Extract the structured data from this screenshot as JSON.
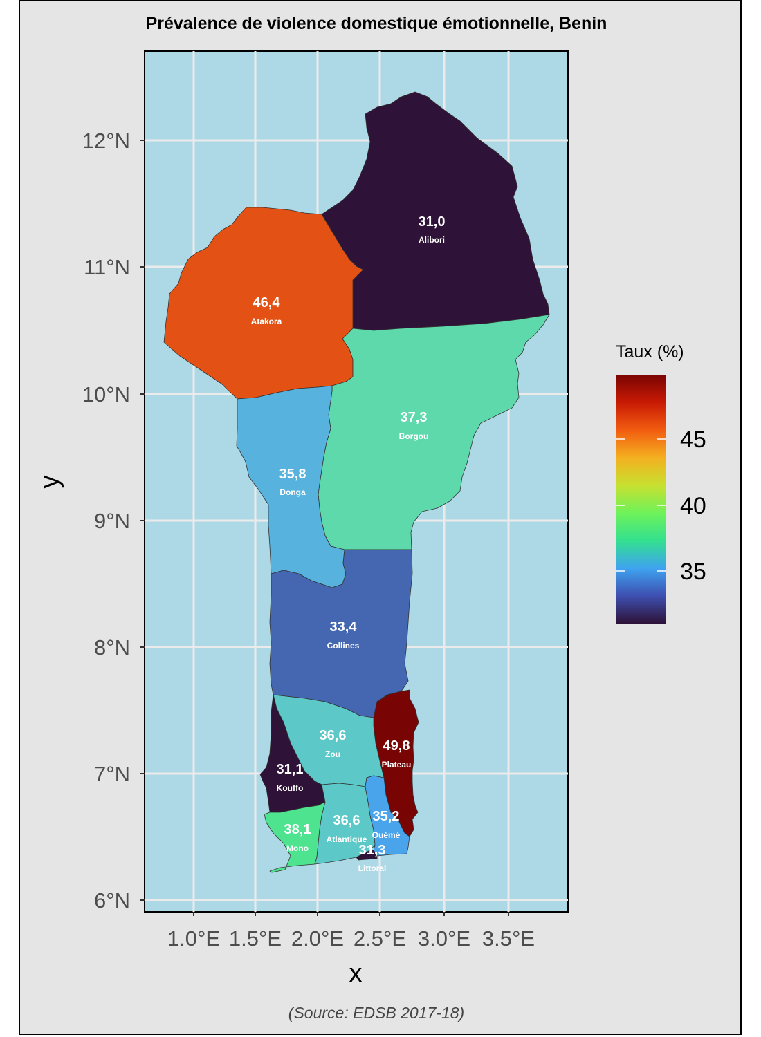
{
  "title": "Prévalence de violence domestique émotionnelle, Benin",
  "source": "(Source: EDSB 2017-18)",
  "axes": {
    "xlabel": "x",
    "ylabel": "y",
    "x_ticks": [
      "1.0°E",
      "1.5°E",
      "2.0°E",
      "2.5°E",
      "3.0°E",
      "3.5°E"
    ],
    "y_ticks": [
      "6°N",
      "7°N",
      "8°N",
      "9°N",
      "10°N",
      "11°N",
      "12°N"
    ]
  },
  "legend": {
    "title": "Taux (%)",
    "ticks": [
      "35",
      "40",
      "45"
    ],
    "gradient": [
      "#2e1237",
      "#3e4fb0",
      "#3ea3f0",
      "#33e08f",
      "#6ef25a",
      "#c8e030",
      "#f4b020",
      "#f25c10",
      "#c81a04",
      "#7a0403"
    ]
  },
  "colors": {
    "panel_bg": "#add8e6",
    "plot_bg": "#e5e5e5",
    "gridline": "#ebebeb"
  },
  "chart_data": {
    "type": "choropleth",
    "value_label": "Taux (%)",
    "regions": [
      {
        "name": "Alibori",
        "value": 31.0,
        "value_label": "31,0",
        "color": "#2e1237"
      },
      {
        "name": "Atakora",
        "value": 46.4,
        "value_label": "46,4",
        "color": "#e35214"
      },
      {
        "name": "Borgou",
        "value": 37.3,
        "value_label": "37,3",
        "color": "#5dd9ac"
      },
      {
        "name": "Donga",
        "value": 35.8,
        "value_label": "35,8",
        "color": "#58b2de"
      },
      {
        "name": "Collines",
        "value": 33.4,
        "value_label": "33,4",
        "color": "#4567b2"
      },
      {
        "name": "Zou",
        "value": 36.6,
        "value_label": "36,6",
        "color": "#5cc8c8"
      },
      {
        "name": "Plateau",
        "value": 49.8,
        "value_label": "49,8",
        "color": "#780404"
      },
      {
        "name": "Kouffo",
        "value": 31.1,
        "value_label": "31,1",
        "color": "#2e1237"
      },
      {
        "name": "Mono",
        "value": 38.1,
        "value_label": "38,1",
        "color": "#4de38f"
      },
      {
        "name": "Atlantique",
        "value": 36.6,
        "value_label": "36,6",
        "color": "#5cc8c8"
      },
      {
        "name": "Ouémé",
        "value": 35.2,
        "value_label": "35,2",
        "color": "#4aa4ec"
      },
      {
        "name": "Littoral",
        "value": 31.3,
        "value_label": "31,3",
        "color": "#2e1237"
      }
    ]
  }
}
